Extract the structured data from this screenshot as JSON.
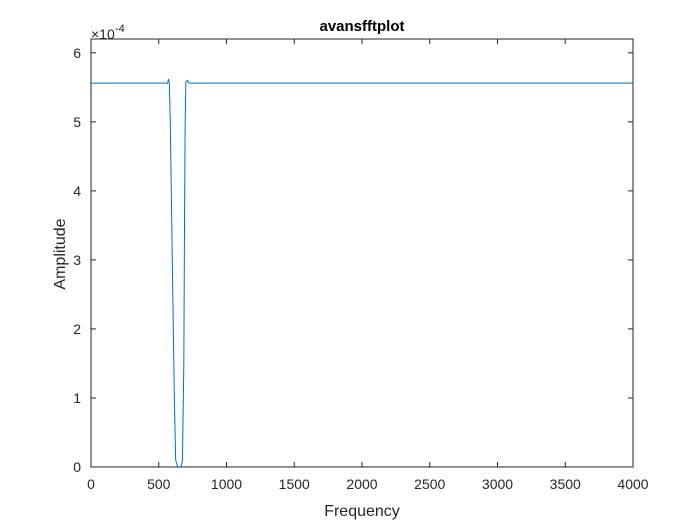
{
  "chart_data": {
    "type": "line",
    "title": "avansfftplot",
    "xlabel": "Frequency",
    "ylabel": "Amplitude",
    "y_exponent_label": "×10",
    "y_exponent_value": "-4",
    "xlim": [
      0,
      4000
    ],
    "ylim": [
      0,
      6.2
    ],
    "x_ticks": [
      0,
      500,
      1000,
      1500,
      2000,
      2500,
      3000,
      3500,
      4000
    ],
    "x_tick_labels": [
      "0",
      "500",
      "1000",
      "1500",
      "2000",
      "2500",
      "3000",
      "3500",
      "4000"
    ],
    "y_ticks": [
      0,
      1,
      2,
      3,
      4,
      5,
      6
    ],
    "y_tick_labels": [
      "0",
      "1",
      "2",
      "3",
      "4",
      "5",
      "6"
    ],
    "grid": false,
    "line_color": "#0072BD",
    "series": [
      {
        "x": [
          0,
          550,
          565,
          572,
          578,
          585,
          600,
          615,
          625,
          640,
          655,
          665,
          675,
          685,
          690,
          695,
          700,
          712,
          725,
          740,
          800,
          1500,
          2500,
          3500,
          4000
        ],
        "values": [
          5.56,
          5.56,
          5.56,
          5.62,
          5.56,
          5.0,
          3.0,
          1.0,
          0.1,
          0.0,
          0.0,
          0.0,
          0.1,
          1.5,
          3.5,
          5.0,
          5.58,
          5.6,
          5.56,
          5.56,
          5.56,
          5.56,
          5.56,
          5.56,
          5.56
        ]
      }
    ]
  }
}
